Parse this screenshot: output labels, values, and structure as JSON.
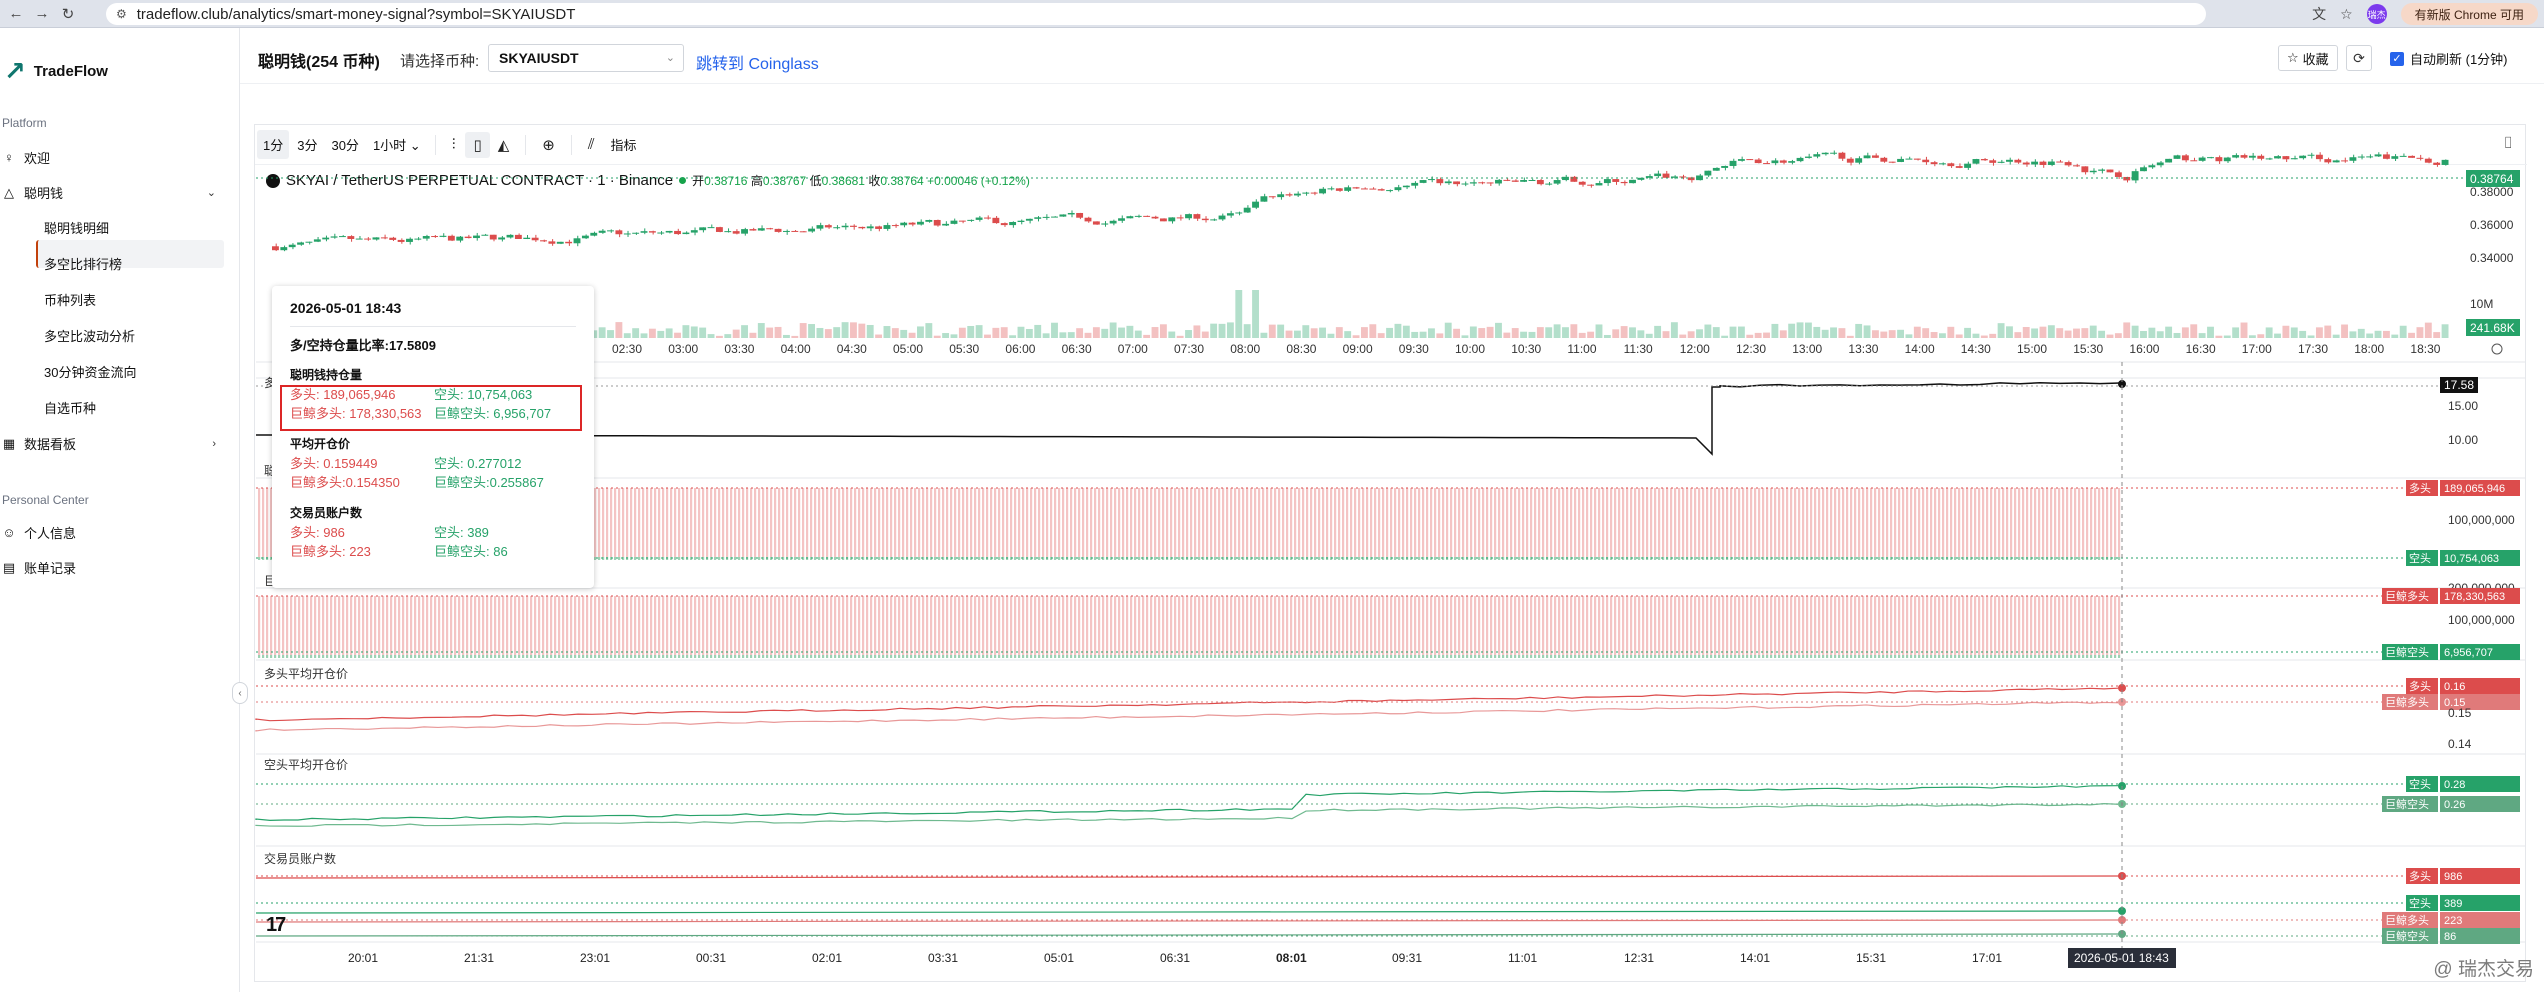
{
  "browser": {
    "url": "tradeflow.club/analytics/smart-money-signal?symbol=SKYAIUSDT",
    "profile_label": "瑞杰",
    "update_label": "有新版 Chrome 可用"
  },
  "sidebar": {
    "brand": "TradeFlow",
    "platform_header": "Platform",
    "items": [
      {
        "label": "欢迎",
        "icon": "bulb-icon"
      },
      {
        "label": "聪明钱",
        "icon": "triangle-icon"
      },
      {
        "label": "数据看板",
        "icon": "dashboard-icon"
      }
    ],
    "sub_items": [
      "聪明钱明细",
      "多空比排行榜",
      "币种列表",
      "多空比波动分析",
      "30分钟资金流向",
      "自选币种"
    ],
    "personal_header": "Personal Center",
    "personal_items": [
      {
        "label": "个人信息",
        "icon": "user-icon"
      },
      {
        "label": "账单记录",
        "icon": "bill-icon"
      }
    ]
  },
  "header": {
    "title": "聪明钱(254 币种)",
    "pick_label": "请选择币种:",
    "symbol": "SKYAIUSDT",
    "jump_link": "跳转到 Coinglass",
    "favorite_label": "收藏",
    "auto_refresh_label": "自动刷新 (1分钟)"
  },
  "toolbar": {
    "intervals": [
      "1分",
      "3分",
      "30分",
      "1小时"
    ],
    "indicator_label": "指标"
  },
  "legend": {
    "symbol_title": "SKYAI / TetherUS PERPETUAL CONTRACT · 1 · Binance",
    "open_label": "开",
    "open": "0.38716",
    "high_label": "高",
    "high": "0.38767",
    "low_label": "低",
    "low": "0.38681",
    "close_label": "收",
    "close": "0.38764",
    "change": "+0.00046 (+0.12%)"
  },
  "price_axis": {
    "ticks": [
      "0.38000",
      "0.36000",
      "0.34000"
    ],
    "current": "0.38764",
    "volume_tick": "10M",
    "volume_current": "241.68K"
  },
  "time_axis_top": [
    "02:30",
    "03:00",
    "03:30",
    "04:00",
    "04:30",
    "05:00",
    "05:30",
    "06:00",
    "06:30",
    "07:00",
    "07:30",
    "08:00",
    "08:30",
    "09:00",
    "09:30",
    "10:00",
    "10:30",
    "11:00",
    "11:30",
    "12:00",
    "12:30",
    "13:00",
    "13:30",
    "14:00",
    "14:30",
    "15:00",
    "15:30",
    "16:00",
    "16:30",
    "17:00",
    "17:30",
    "18:00",
    "18:30"
  ],
  "time_axis_bottom": [
    "20:01",
    "21:31",
    "23:01",
    "00:31",
    "02:01",
    "03:31",
    "05:01",
    "06:31",
    "08:01",
    "09:31",
    "11:01",
    "12:31",
    "14:01",
    "15:31",
    "17:01"
  ],
  "time_axis_highlight": "08:01",
  "crosshair_time": "2026-05-01 18:43",
  "panes": {
    "ratio": {
      "label": "多",
      "value": "17.58",
      "ticks": [
        "15.00",
        "10.00"
      ]
    },
    "positions": {
      "label": "聪",
      "long_tag": "多头",
      "long_value": "189,065,946",
      "tick": "100,000,000",
      "short_tag": "空头",
      "short_value": "10,754,063"
    },
    "whale_positions": {
      "label": "巨",
      "tick_top": "200,000,000",
      "long_tag": "巨鲸多头",
      "long_value": "178,330,563",
      "tick": "100,000,000",
      "short_tag": "巨鲸空头",
      "short_value": "6,956,707"
    },
    "long_avg": {
      "label": "多头平均开仓价",
      "tag1": "多头",
      "value1": "0.16",
      "tag2": "巨鲸多头",
      "value2": "0.15",
      "ticks": [
        "0.15",
        "0.14"
      ]
    },
    "short_avg": {
      "label": "空头平均开仓价",
      "tag1": "空头",
      "value1": "0.28",
      "tag2": "巨鲸空头",
      "value2": "0.26"
    },
    "accounts": {
      "label": "交易员账户数",
      "tag1": "多头",
      "value1": "986",
      "tag2": "空头",
      "value2": "389",
      "tag3": "巨鲸多头",
      "value3": "223",
      "tag4": "巨鲸空头",
      "value4": "86"
    }
  },
  "tooltip": {
    "time": "2026-05-01 18:43",
    "ratio": "多/空持仓量比率:17.5809",
    "sec1": "聪明钱持仓量",
    "long": "多头: 189,065,946",
    "short": "空头: 10,754,063",
    "whale_long": "巨鲸多头: 178,330,563",
    "whale_short": "巨鲸空头: 6,956,707",
    "sec2": "平均开仓价",
    "avg_long": "多头: 0.159449",
    "avg_short": "空头: 0.277012",
    "avg_whale_long": "巨鲸多头:0.154350",
    "avg_whale_short": "巨鲸空头:0.255867",
    "sec3": "交易员账户数",
    "acc_long": "多头: 986",
    "acc_short": "空头: 389",
    "acc_whale_long": "巨鲸多头: 223",
    "acc_whale_short": "巨鲸空头: 86"
  },
  "watermark": "@ 瑞杰交易",
  "colors": {
    "up": "#26a269",
    "down": "#dc4c4c",
    "accent": "#2563eb"
  }
}
